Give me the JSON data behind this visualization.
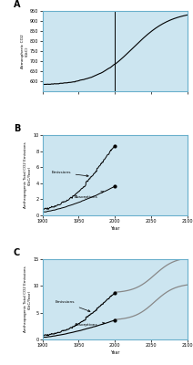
{
  "panel_A": {
    "label": "A",
    "ylabel": "Atmospheric CO2\n(GtC)",
    "xlim": [
      1900,
      2100
    ],
    "ylim": [
      550,
      950
    ],
    "yticks": [
      600,
      650,
      700,
      750,
      800,
      850,
      900,
      950
    ],
    "xticks": [
      1900,
      1950,
      2000,
      2050,
      2100
    ],
    "vline_x": 2000,
    "bg_color": "#cce5f0"
  },
  "panel_B": {
    "label": "B",
    "ylabel": "Anthropogenic Total CO2 Emissions\n(GtC/Year)",
    "xlabel": "Year",
    "xlim": [
      1900,
      2100
    ],
    "ylim": [
      0,
      10
    ],
    "yticks": [
      0,
      2,
      4,
      6,
      8,
      10
    ],
    "xticks": [
      1900,
      1950,
      2000,
      2050,
      2100
    ],
    "bg_color": "#cce5f0"
  },
  "panel_C": {
    "label": "C",
    "ylabel": "Anthropogenic Total CO2 Emissions\n(GtC/Year)",
    "xlabel": "Year",
    "xlim": [
      1900,
      2100
    ],
    "ylim": [
      0,
      15
    ],
    "yticks": [
      0,
      5,
      10,
      15
    ],
    "xticks": [
      1900,
      1950,
      2000,
      2050,
      2100
    ],
    "bg_color": "#cce5f0"
  }
}
